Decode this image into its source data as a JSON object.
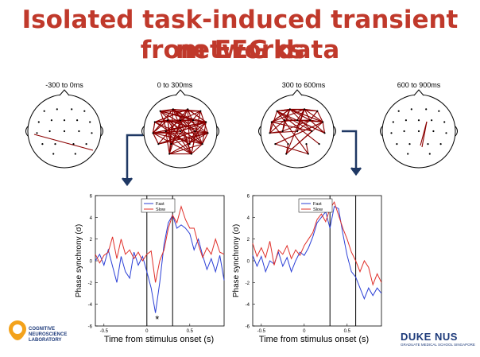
{
  "title_line1": "Isolated task-induced transient networks",
  "title_line2": "from EEG data",
  "windows": [
    "-300 to 0ms",
    "0 to 300ms",
    "300 to 600ms",
    "600 to 900ms"
  ],
  "chart_data": [
    {
      "type": "line",
      "xlabel": "Time from stimulus onset (s)",
      "ylabel": "Phase synchrony (σ)",
      "xlim": [
        -0.6,
        0.9
      ],
      "ylim": [
        -6,
        6
      ],
      "xticks": [
        "-0.5",
        "0",
        "0.5"
      ],
      "yticks": [
        "6",
        "4",
        "2",
        "0",
        "-2",
        "-4",
        "-6"
      ],
      "legend": [
        "Fast",
        "Slow"
      ],
      "vlines": [
        0,
        0.3
      ],
      "annotation": "*",
      "x": [
        -0.6,
        -0.55,
        -0.5,
        -0.45,
        -0.4,
        -0.35,
        -0.3,
        -0.25,
        -0.2,
        -0.15,
        -0.1,
        -0.05,
        0,
        0.05,
        0.1,
        0.15,
        0.2,
        0.25,
        0.3,
        0.35,
        0.4,
        0.45,
        0.5,
        0.55,
        0.6,
        0.65,
        0.7,
        0.75,
        0.8,
        0.85,
        0.9
      ],
      "series": [
        {
          "name": "Fast",
          "color": "#2b3fd6",
          "values": [
            0,
            0.6,
            -0.4,
            1,
            -0.5,
            -2,
            0.4,
            -1,
            -1.6,
            0.8,
            -0.4,
            0.4,
            -1,
            -2.5,
            -4.8,
            -2,
            1.5,
            3.5,
            4.2,
            3,
            3.3,
            3,
            2.5,
            1,
            2,
            0.5,
            -0.8,
            0.2,
            -1,
            0.5,
            -1.8
          ]
        },
        {
          "name": "Slow",
          "color": "#e0302a",
          "values": [
            0.6,
            -0.2,
            0.5,
            0.8,
            2.2,
            0.2,
            2,
            0.6,
            1,
            0.2,
            0.8,
            0,
            0.6,
            0.9,
            -2,
            0,
            1,
            3,
            4.2,
            3.5,
            5,
            3.8,
            3,
            3,
            1.5,
            0.3,
            1.2,
            0.6,
            2,
            0.8,
            0.6
          ]
        }
      ]
    },
    {
      "type": "line",
      "xlabel": "Time from stimulus onset (s)",
      "ylabel": "Phase synchrony (σ)",
      "xlim": [
        -0.6,
        0.9
      ],
      "ylim": [
        -6,
        6
      ],
      "xticks": [
        "-0.5",
        "0",
        "0.5"
      ],
      "yticks": [
        "6",
        "4",
        "2",
        "0",
        "-2",
        "-4",
        "-6"
      ],
      "legend": [
        "Fast",
        "Slow"
      ],
      "vlines": [
        0.3,
        0.6
      ],
      "x": [
        -0.6,
        -0.55,
        -0.5,
        -0.45,
        -0.4,
        -0.35,
        -0.3,
        -0.25,
        -0.2,
        -0.15,
        -0.1,
        -0.05,
        0,
        0.05,
        0.1,
        0.15,
        0.2,
        0.25,
        0.3,
        0.35,
        0.4,
        0.45,
        0.5,
        0.55,
        0.6,
        0.65,
        0.7,
        0.75,
        0.8,
        0.85,
        0.9
      ],
      "series": [
        {
          "name": "Fast",
          "color": "#2b3fd6",
          "values": [
            0.5,
            -0.5,
            0.4,
            -1,
            0,
            -0.3,
            0.8,
            -0.5,
            0.3,
            -1,
            0,
            0.8,
            0.5,
            1.2,
            2.2,
            3.5,
            4,
            4.5,
            3,
            5,
            4.8,
            2.5,
            0.5,
            -1,
            -1.5,
            -2.5,
            -3.5,
            -2.5,
            -3.2,
            -2.5,
            -3
          ]
        },
        {
          "name": "Slow",
          "color": "#e0302a",
          "values": [
            1.6,
            0.4,
            1.2,
            0.3,
            1.8,
            -0.4,
            1,
            0.6,
            1.4,
            0.2,
            1,
            0.5,
            1.4,
            2,
            2.6,
            3.8,
            4.3,
            3.6,
            4.8,
            5.4,
            4.2,
            3,
            2,
            0.8,
            0,
            -1,
            0,
            -0.6,
            -2.2,
            -1.2,
            -2
          ]
        }
      ]
    }
  ],
  "logo_left_lines": [
    "COGNITIVE",
    "NEUROSCIENCE",
    "LABORATORY"
  ],
  "logo_right_main": "DUKE NUS",
  "logo_right_sub": "GRADUATE MEDICAL SCHOOL SINGAPORE"
}
